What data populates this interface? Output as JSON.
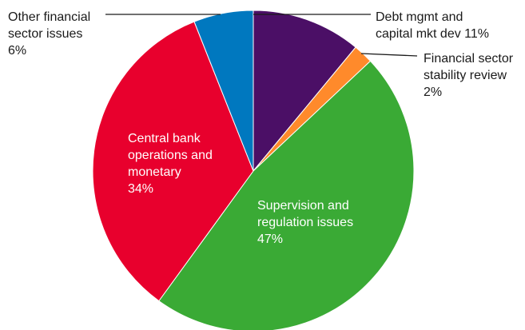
{
  "chart_data": {
    "type": "pie",
    "slices": [
      {
        "lines": [
          "Debt mgmt and",
          "capital mkt dev 11%"
        ],
        "value": 11,
        "color": "#4b0f66"
      },
      {
        "lines": [
          "Financial sector",
          "stability review",
          "2%"
        ],
        "value": 2,
        "color": "#ff8a2b"
      },
      {
        "lines": [
          "Supervision and",
          "regulation issues",
          "47%"
        ],
        "value": 47,
        "color": "#3aaa35"
      },
      {
        "lines": [
          "Central bank",
          "operations and",
          "monetary",
          "34%"
        ],
        "value": 34,
        "color": "#e8002d"
      },
      {
        "lines": [
          "Other financial",
          "sector issues",
          "6%"
        ],
        "value": 6,
        "color": "#0078bf"
      }
    ]
  }
}
